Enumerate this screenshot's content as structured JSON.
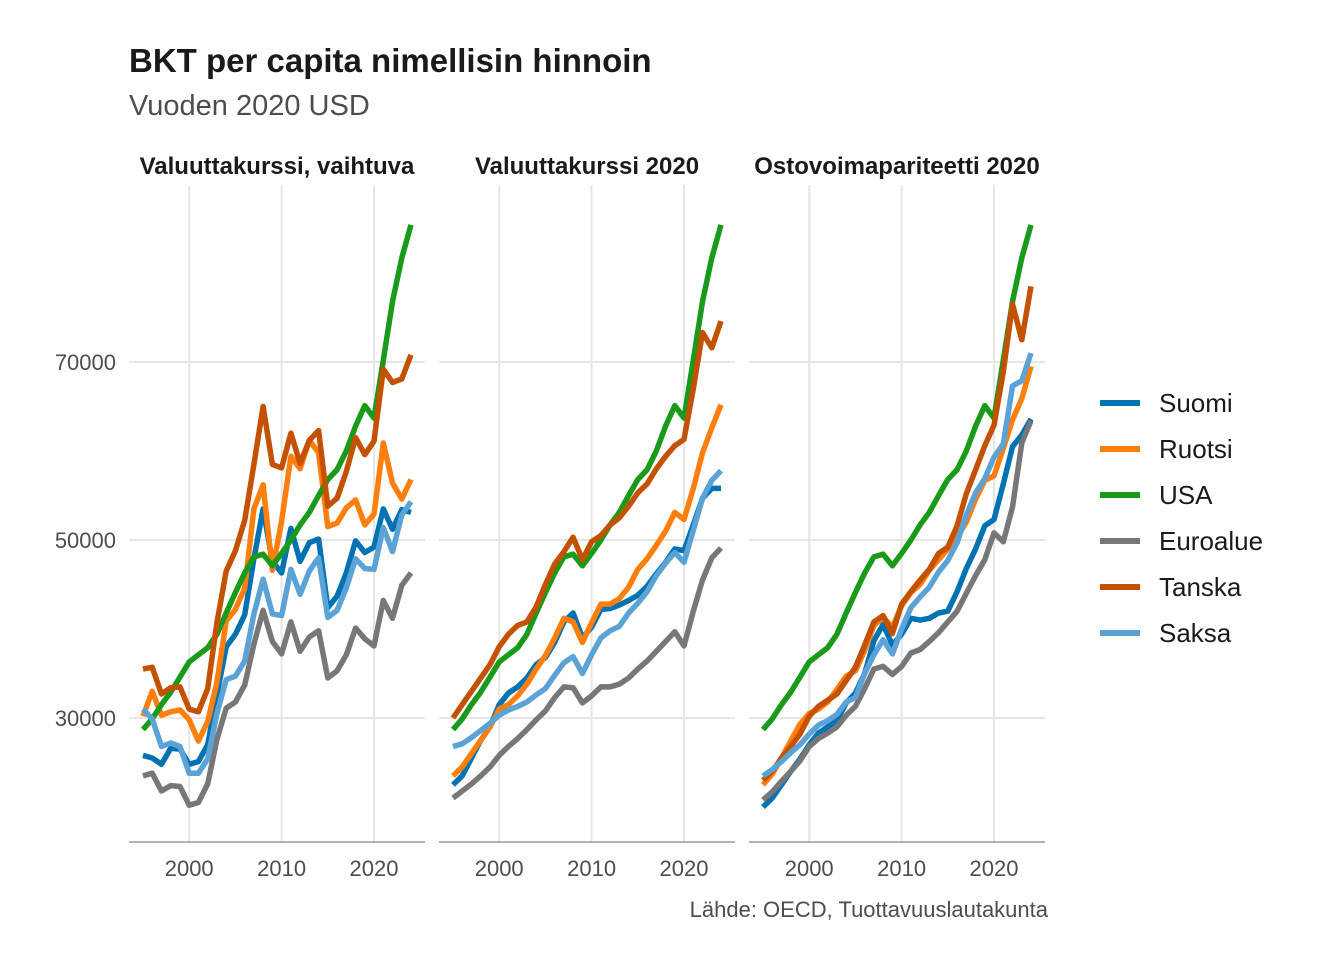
{
  "chart_data": {
    "type": "line",
    "title": "BKT per capita nimellisin hinnoin",
    "subtitle": "Vuoden 2020 USD",
    "caption": "Lähde: OECD, Tuottavuuslautakunta",
    "xlabel": "",
    "ylabel": "",
    "x_ticks": [
      2000,
      2010,
      2020
    ],
    "y_ticks": [
      30000,
      50000,
      70000
    ],
    "ylim": [
      17000,
      87000
    ],
    "xlim": [
      1994.5,
      2025.5
    ],
    "grid": true,
    "legend_position": "right",
    "series_styles": [
      {
        "name": "Suomi",
        "color": "#0072B2"
      },
      {
        "name": "Ruotsi",
        "color": "#FF7F0E"
      },
      {
        "name": "USA",
        "color": "#1A9A1A"
      },
      {
        "name": "Euroalue",
        "color": "#777777"
      },
      {
        "name": "Tanska",
        "color": "#C45100"
      },
      {
        "name": "Saksa",
        "color": "#5BA3D6"
      }
    ],
    "panels": [
      {
        "title": "Valuuttakurssi, vaihtuva",
        "x": [
          1995,
          1996,
          1997,
          1998,
          1999,
          2000,
          2001,
          2002,
          2003,
          2004,
          2005,
          2006,
          2007,
          2008,
          2009,
          2010,
          2011,
          2012,
          2013,
          2014,
          2015,
          2016,
          2017,
          2018,
          2019,
          2020,
          2021,
          2022,
          2023,
          2024
        ],
        "series": [
          {
            "name": "Suomi",
            "values": [
              25800,
              25500,
              24800,
              26600,
              26500,
              24800,
              25100,
              27000,
              32600,
              38000,
              39400,
              41600,
              47900,
              53500,
              47600,
              46300,
              51300,
              47600,
              49700,
              50100,
              42400,
              43700,
              46300,
              49900,
              48600,
              49200,
              53500,
              51200,
              53400,
              53100
            ]
          },
          {
            "name": "Ruotsi",
            "values": [
              30200,
              33000,
              30300,
              30700,
              30900,
              29800,
              27400,
              29600,
              34000,
              40900,
              42200,
              44600,
              53500,
              56200,
              46600,
              52100,
              59400,
              58000,
              61200,
              59800,
              51500,
              51900,
              53600,
              54500,
              51700,
              52900,
              60900,
              56400,
              54600,
              56800
            ]
          },
          {
            "name": "USA",
            "values": [
              28700,
              29900,
              31500,
              32900,
              34600,
              36300,
              37100,
              37900,
              39400,
              41800,
              44100,
              46300,
              48100,
              48400,
              47100,
              48500,
              50000,
              51700,
              53100,
              55000,
              56800,
              57900,
              60000,
              62800,
              65100,
              63700,
              70200,
              76800,
              81700,
              85400
            ]
          },
          {
            "name": "Euroalue",
            "values": [
              23500,
              23800,
              21800,
              22400,
              22300,
              20200,
              20500,
              22600,
              27600,
              31100,
              31800,
              33700,
              38300,
              42100,
              38600,
              37200,
              40800,
              37500,
              39100,
              39800,
              34500,
              35300,
              37100,
              40100,
              38900,
              38100,
              43200,
              41200,
              44900,
              46300
            ]
          },
          {
            "name": "Tanska",
            "values": [
              35500,
              35700,
              32700,
              33400,
              33500,
              31000,
              30700,
              33300,
              40700,
              46500,
              48800,
              52200,
              58500,
              65000,
              58500,
              58100,
              62000,
              58600,
              61200,
              62300,
              53800,
              54700,
              57700,
              61500,
              59600,
              61100,
              69200,
              67700,
              68100,
              70800
            ]
          },
          {
            "name": "Saksa",
            "values": [
              31000,
              29900,
              26800,
              27200,
              26800,
              23800,
              23800,
              25400,
              30500,
              34300,
              34700,
              36400,
              41700,
              45600,
              41700,
              41500,
              46700,
              43900,
              46500,
              48000,
              41300,
              42100,
              44600,
              47900,
              46800,
              46700,
              51400,
              48700,
              52800,
              54300
            ]
          }
        ]
      },
      {
        "title": "Valuuttakurssi 2020",
        "x": [
          1995,
          1996,
          1997,
          1998,
          1999,
          2000,
          2001,
          2002,
          2003,
          2004,
          2005,
          2006,
          2007,
          2008,
          2009,
          2010,
          2011,
          2012,
          2013,
          2014,
          2015,
          2016,
          2017,
          2018,
          2019,
          2020,
          2021,
          2022,
          2023,
          2024
        ],
        "series": [
          {
            "name": "Suomi",
            "values": [
              22500,
              23500,
              25500,
              27500,
              29000,
              31500,
              32800,
              33500,
              34500,
              36000,
              36800,
              38500,
              40800,
              41800,
              39000,
              40200,
              42200,
              42300,
              42700,
              43200,
              43800,
              44800,
              46200,
              47500,
              49000,
              48800,
              51700,
              54700,
              55800,
              55800
            ]
          },
          {
            "name": "Ruotsi",
            "values": [
              23500,
              24500,
              26000,
              27500,
              29000,
              31000,
              31500,
              32500,
              33800,
              35500,
              37000,
              39000,
              41200,
              40800,
              38500,
              40700,
              42800,
              42800,
              43400,
              44700,
              46700,
              47900,
              49400,
              51000,
              53100,
              52300,
              55800,
              59800,
              62600,
              65200
            ]
          },
          {
            "name": "USA",
            "values": [
              28700,
              29900,
              31500,
              32900,
              34600,
              36300,
              37100,
              37900,
              39400,
              41800,
              44100,
              46300,
              48100,
              48400,
              47100,
              48500,
              50000,
              51700,
              53100,
              55000,
              56800,
              57900,
              60000,
              62800,
              65100,
              63700,
              70200,
              76800,
              81700,
              85400
            ]
          },
          {
            "name": "Euroalue",
            "values": [
              21000,
              21800,
              22600,
              23500,
              24500,
              25800,
              26800,
              27700,
              28700,
              29800,
              30800,
              32300,
              33500,
              33400,
              31700,
              32500,
              33500,
              33500,
              33800,
              34500,
              35500,
              36400,
              37500,
              38600,
              39700,
              38100,
              42000,
              45500,
              48000,
              49100
            ]
          },
          {
            "name": "Tanska",
            "values": [
              30000,
              31500,
              33000,
              34500,
              36000,
              38000,
              39400,
              40400,
              40800,
              42500,
              45000,
              47300,
              48700,
              50300,
              47800,
              49800,
              50500,
              51700,
              52500,
              53800,
              55300,
              56300,
              58000,
              59400,
              60600,
              61300,
              67000,
              73300,
              71600,
              74600
            ]
          },
          {
            "name": "Saksa",
            "values": [
              26800,
              27100,
              27800,
              28600,
              29400,
              30300,
              30900,
              31300,
              31800,
              32600,
              33300,
              34800,
              36200,
              36900,
              35000,
              37100,
              39000,
              39800,
              40300,
              41800,
              42900,
              44200,
              46000,
              47400,
              48600,
              47500,
              51100,
              54700,
              56700,
              57800
            ]
          }
        ]
      },
      {
        "title": "Ostovoimapariteetti 2020",
        "x": [
          1995,
          1996,
          1997,
          1998,
          1999,
          2000,
          2001,
          2002,
          2003,
          2004,
          2005,
          2006,
          2007,
          2008,
          2009,
          2010,
          2011,
          2012,
          2013,
          2014,
          2015,
          2016,
          2017,
          2018,
          2019,
          2020,
          2021,
          2022,
          2023,
          2024
        ],
        "series": [
          {
            "name": "Suomi",
            "values": [
              20000,
              21000,
              22500,
              24000,
              25400,
              27000,
              28300,
              29000,
              29700,
              31700,
              32800,
              35000,
              38700,
              40500,
              38200,
              39400,
              41200,
              41000,
              41200,
              41800,
              42000,
              44200,
              46800,
              49000,
              51600,
              52300,
              56300,
              60500,
              61800,
              63600
            ]
          },
          {
            "name": "Ruotsi",
            "values": [
              22500,
              23700,
              25500,
              27400,
              29300,
              30500,
              31000,
              31800,
              33200,
              34700,
              35300,
              37600,
              40400,
              41300,
              40200,
              42600,
              44100,
              45000,
              46600,
              47800,
              49000,
              50300,
              52000,
              54600,
              56700,
              57200,
              60300,
              63500,
              65900,
              69500
            ]
          },
          {
            "name": "USA",
            "values": [
              28700,
              29900,
              31500,
              32900,
              34600,
              36300,
              37100,
              37900,
              39400,
              41800,
              44100,
              46300,
              48100,
              48400,
              47100,
              48500,
              50000,
              51700,
              53100,
              55000,
              56800,
              57900,
              60000,
              62800,
              65100,
              63700,
              70200,
              76800,
              81700,
              85400
            ]
          },
          {
            "name": "Euroalue",
            "values": [
              20800,
              21700,
              22900,
              24000,
              25200,
              26800,
              27700,
              28300,
              29000,
              30300,
              31300,
              33300,
              35500,
              35800,
              34900,
              35800,
              37300,
              37700,
              38600,
              39600,
              40800,
              42000,
              44000,
              46000,
              47800,
              50800,
              49800,
              53700,
              60900,
              63400
            ]
          },
          {
            "name": "Tanska",
            "values": [
              23000,
              24000,
              25500,
              26800,
              28200,
              30200,
              31300,
              32000,
              32700,
              34200,
              35700,
              38200,
              40800,
              41500,
              39500,
              42800,
              44200,
              45500,
              46700,
              48500,
              49200,
              51600,
              55200,
              57900,
              60600,
              62900,
              68900,
              76500,
              72500,
              78500
            ]
          },
          {
            "name": "Saksa",
            "values": [
              23500,
              24200,
              25100,
              26100,
              27000,
              28200,
              29200,
              29700,
              30400,
              31800,
              32300,
              35000,
              37100,
              38800,
              37200,
              40000,
              42400,
              43600,
              44700,
              46400,
              47700,
              49700,
              52800,
              55300,
              56900,
              59300,
              60800,
              67300,
              67900,
              71000
            ]
          }
        ]
      }
    ]
  }
}
